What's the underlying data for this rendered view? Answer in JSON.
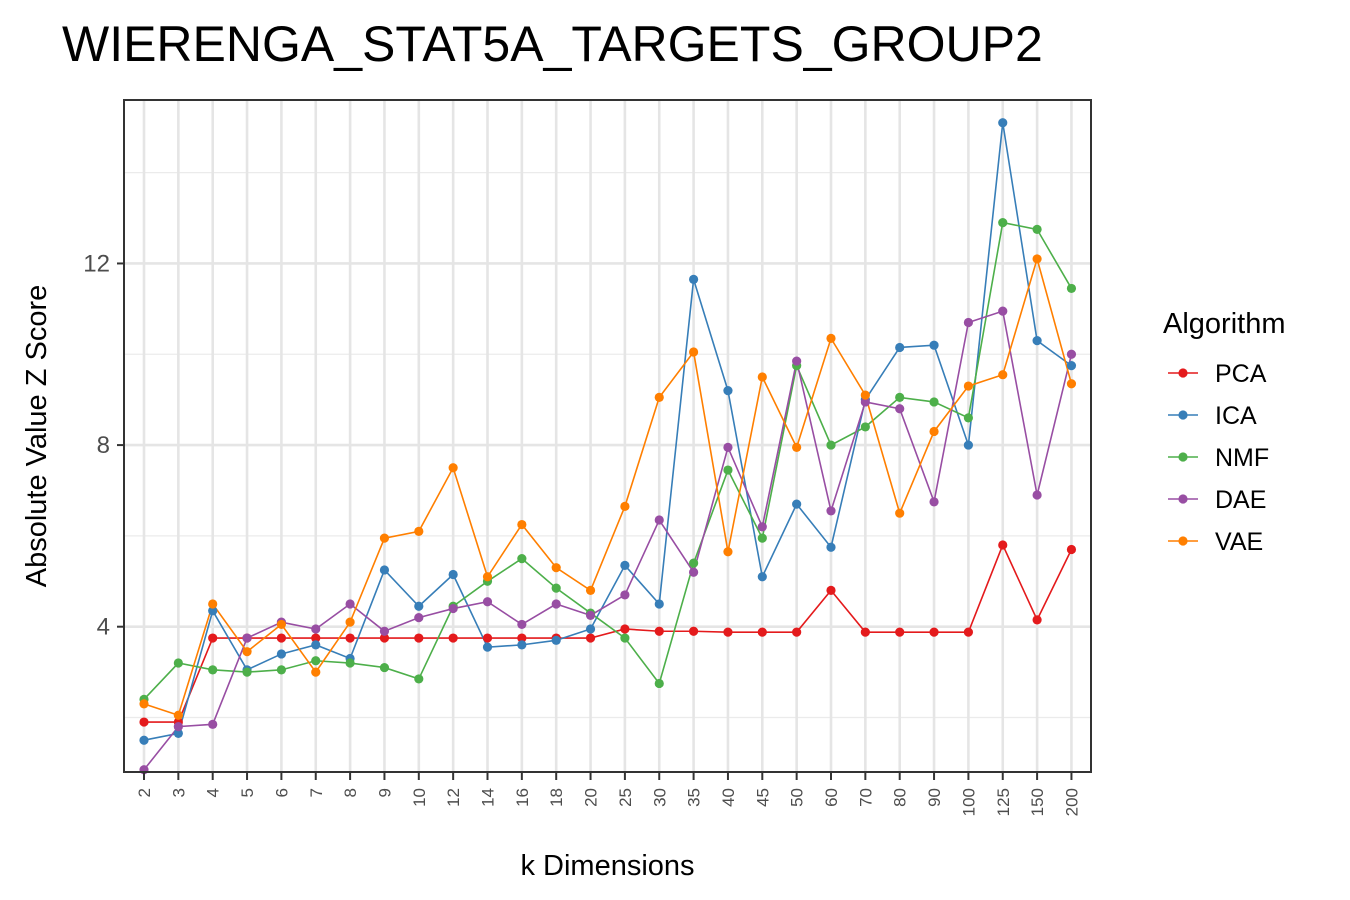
{
  "chart_data": {
    "type": "line",
    "title": "WIERENGA_STAT5A_TARGETS_GROUP2",
    "xlabel": "k Dimensions",
    "ylabel": "Absolute Value Z Score",
    "categories": [
      "2",
      "3",
      "4",
      "5",
      "6",
      "7",
      "8",
      "9",
      "10",
      "12",
      "14",
      "16",
      "18",
      "20",
      "25",
      "30",
      "35",
      "40",
      "45",
      "50",
      "60",
      "70",
      "80",
      "90",
      "100",
      "125",
      "150",
      "200"
    ],
    "ylim": [
      0.8,
      15.6
    ],
    "yticks": [
      4,
      8,
      12
    ],
    "grid": true,
    "legend": {
      "title": "Algorithm",
      "position": "right"
    },
    "series": [
      {
        "name": "PCA",
        "color": "#e41a1c",
        "values": [
          1.9,
          1.9,
          3.75,
          3.75,
          3.75,
          3.75,
          3.75,
          3.75,
          3.75,
          3.75,
          3.75,
          3.75,
          3.75,
          3.75,
          3.95,
          3.9,
          3.9,
          3.88,
          3.88,
          3.88,
          4.8,
          3.88,
          3.88,
          3.88,
          3.88,
          5.8,
          4.15,
          5.7
        ]
      },
      {
        "name": "ICA",
        "color": "#377eb8",
        "values": [
          1.5,
          1.65,
          4.35,
          3.05,
          3.4,
          3.6,
          3.3,
          5.25,
          4.45,
          5.15,
          3.55,
          3.6,
          3.7,
          3.95,
          5.35,
          4.5,
          11.65,
          9.2,
          5.1,
          6.7,
          5.75,
          9.0,
          10.15,
          10.2,
          8.0,
          15.1,
          10.3,
          9.75
        ]
      },
      {
        "name": "NMF",
        "color": "#4daf4a",
        "values": [
          2.4,
          3.2,
          3.05,
          3.0,
          3.05,
          3.25,
          3.2,
          3.1,
          2.85,
          4.45,
          5.0,
          5.5,
          4.85,
          4.3,
          3.75,
          2.75,
          5.4,
          7.45,
          5.95,
          9.75,
          8.0,
          8.4,
          9.05,
          8.95,
          8.6,
          12.9,
          12.75,
          11.45
        ]
      },
      {
        "name": "DAE",
        "color": "#984ea3",
        "values": [
          0.85,
          1.8,
          1.85,
          3.75,
          4.1,
          3.95,
          4.5,
          3.9,
          4.2,
          4.4,
          4.55,
          4.05,
          4.5,
          4.25,
          4.7,
          6.35,
          5.2,
          7.95,
          6.2,
          9.85,
          6.55,
          8.95,
          8.8,
          6.75,
          10.7,
          10.95,
          6.9,
          10.0
        ]
      },
      {
        "name": "VAE",
        "color": "#ff7f00",
        "values": [
          2.3,
          2.05,
          4.5,
          3.45,
          4.05,
          3.0,
          4.1,
          5.95,
          6.1,
          7.5,
          5.1,
          6.25,
          5.3,
          4.8,
          6.65,
          9.05,
          10.05,
          5.65,
          9.5,
          7.95,
          10.35,
          9.1,
          6.5,
          8.3,
          9.3,
          9.55,
          12.1,
          9.35
        ]
      }
    ]
  }
}
